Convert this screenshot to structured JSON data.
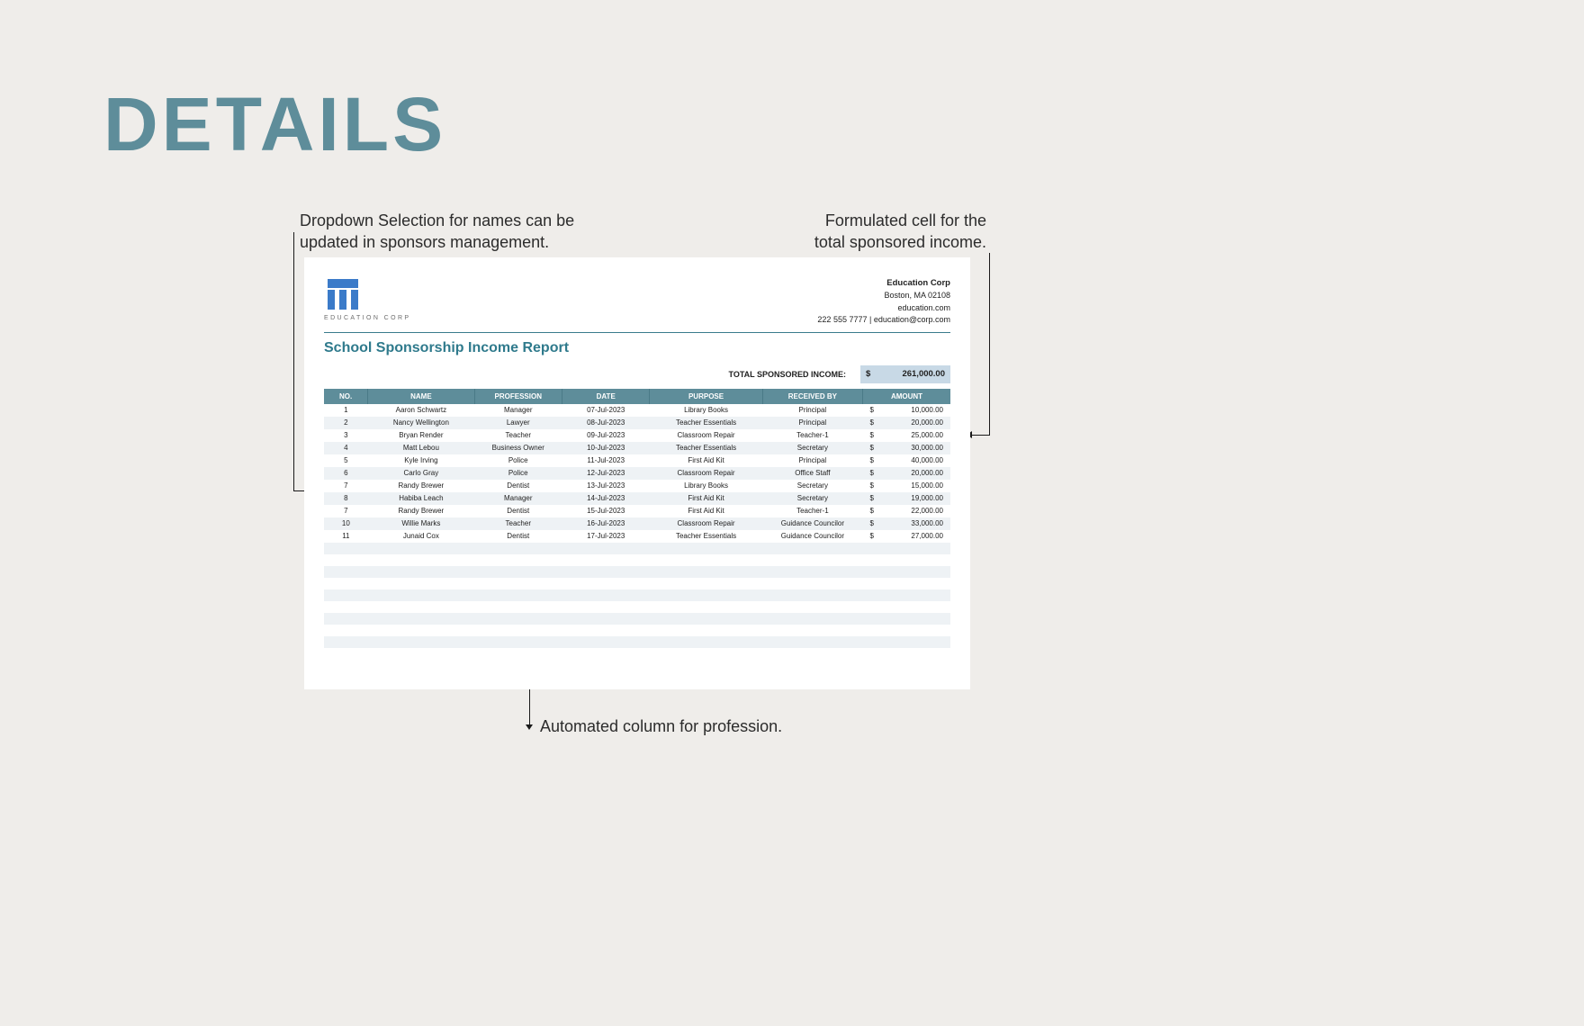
{
  "page": {
    "title": "DETAILS",
    "title_color": "#5e8d9a",
    "background": "#efedea"
  },
  "annotations": {
    "top_left": "Dropdown Selection for names can be\nupdated in sponsors management.",
    "top_right": "Formulated cell for the\ntotal sponsored income.",
    "bottom": "Automated column for profession."
  },
  "doc": {
    "company": {
      "name": "Education Corp",
      "address": "Boston, MA 02108",
      "website": "education.com",
      "contact": "222 555 7777 | education@corp.com",
      "logo_label": "EDUCATION CORP",
      "logo_color": "#3b7bc9"
    },
    "report_title": "School Sponsorship Income Report",
    "report_title_color": "#2f7a8c",
    "total": {
      "label": "TOTAL SPONSORED INCOME:",
      "currency": "$",
      "value": "261,000.00",
      "cell_bg": "#c8d9e6"
    },
    "table": {
      "header_bg": "#5e8d9a",
      "columns": [
        "NO.",
        "NAME",
        "PROFESSION",
        "DATE",
        "PURPOSE",
        "RECEIVED BY",
        "AMOUNT"
      ],
      "rows": [
        {
          "no": "1",
          "name": "Aaron Schwartz",
          "profession": "Manager",
          "date": "07-Jul-2023",
          "purpose": "Library Books",
          "received_by": "Principal",
          "amount": "10,000.00"
        },
        {
          "no": "2",
          "name": "Nancy Wellington",
          "profession": "Lawyer",
          "date": "08-Jul-2023",
          "purpose": "Teacher Essentials",
          "received_by": "Principal",
          "amount": "20,000.00"
        },
        {
          "no": "3",
          "name": "Bryan Render",
          "profession": "Teacher",
          "date": "09-Jul-2023",
          "purpose": "Classroom Repair",
          "received_by": "Teacher-1",
          "amount": "25,000.00"
        },
        {
          "no": "4",
          "name": "Matt Lebou",
          "profession": "Business Owner",
          "date": "10-Jul-2023",
          "purpose": "Teacher Essentials",
          "received_by": "Secretary",
          "amount": "30,000.00"
        },
        {
          "no": "5",
          "name": "Kyle Irving",
          "profession": "Police",
          "date": "11-Jul-2023",
          "purpose": "First Aid Kit",
          "received_by": "Principal",
          "amount": "40,000.00"
        },
        {
          "no": "6",
          "name": "Carlo Gray",
          "profession": "Police",
          "date": "12-Jul-2023",
          "purpose": "Classroom Repair",
          "received_by": "Office Staff",
          "amount": "20,000.00"
        },
        {
          "no": "7",
          "name": "Randy Brewer",
          "profession": "Dentist",
          "date": "13-Jul-2023",
          "purpose": "Library Books",
          "received_by": "Secretary",
          "amount": "15,000.00"
        },
        {
          "no": "8",
          "name": "Habiba Leach",
          "profession": "Manager",
          "date": "14-Jul-2023",
          "purpose": "First Aid Kit",
          "received_by": "Secretary",
          "amount": "19,000.00"
        },
        {
          "no": "7",
          "name": "Randy Brewer",
          "profession": "Dentist",
          "date": "15-Jul-2023",
          "purpose": "First Aid Kit",
          "received_by": "Teacher-1",
          "amount": "22,000.00"
        },
        {
          "no": "10",
          "name": "Willie Marks",
          "profession": "Teacher",
          "date": "16-Jul-2023",
          "purpose": "Classroom Repair",
          "received_by": "Guidance Councilor",
          "amount": "33,000.00"
        },
        {
          "no": "11",
          "name": "Junaid Cox",
          "profession": "Dentist",
          "date": "17-Jul-2023",
          "purpose": "Teacher Essentials",
          "received_by": "Guidance Councilor",
          "amount": "27,000.00"
        }
      ],
      "empty_rows": 10,
      "currency": "$"
    }
  }
}
